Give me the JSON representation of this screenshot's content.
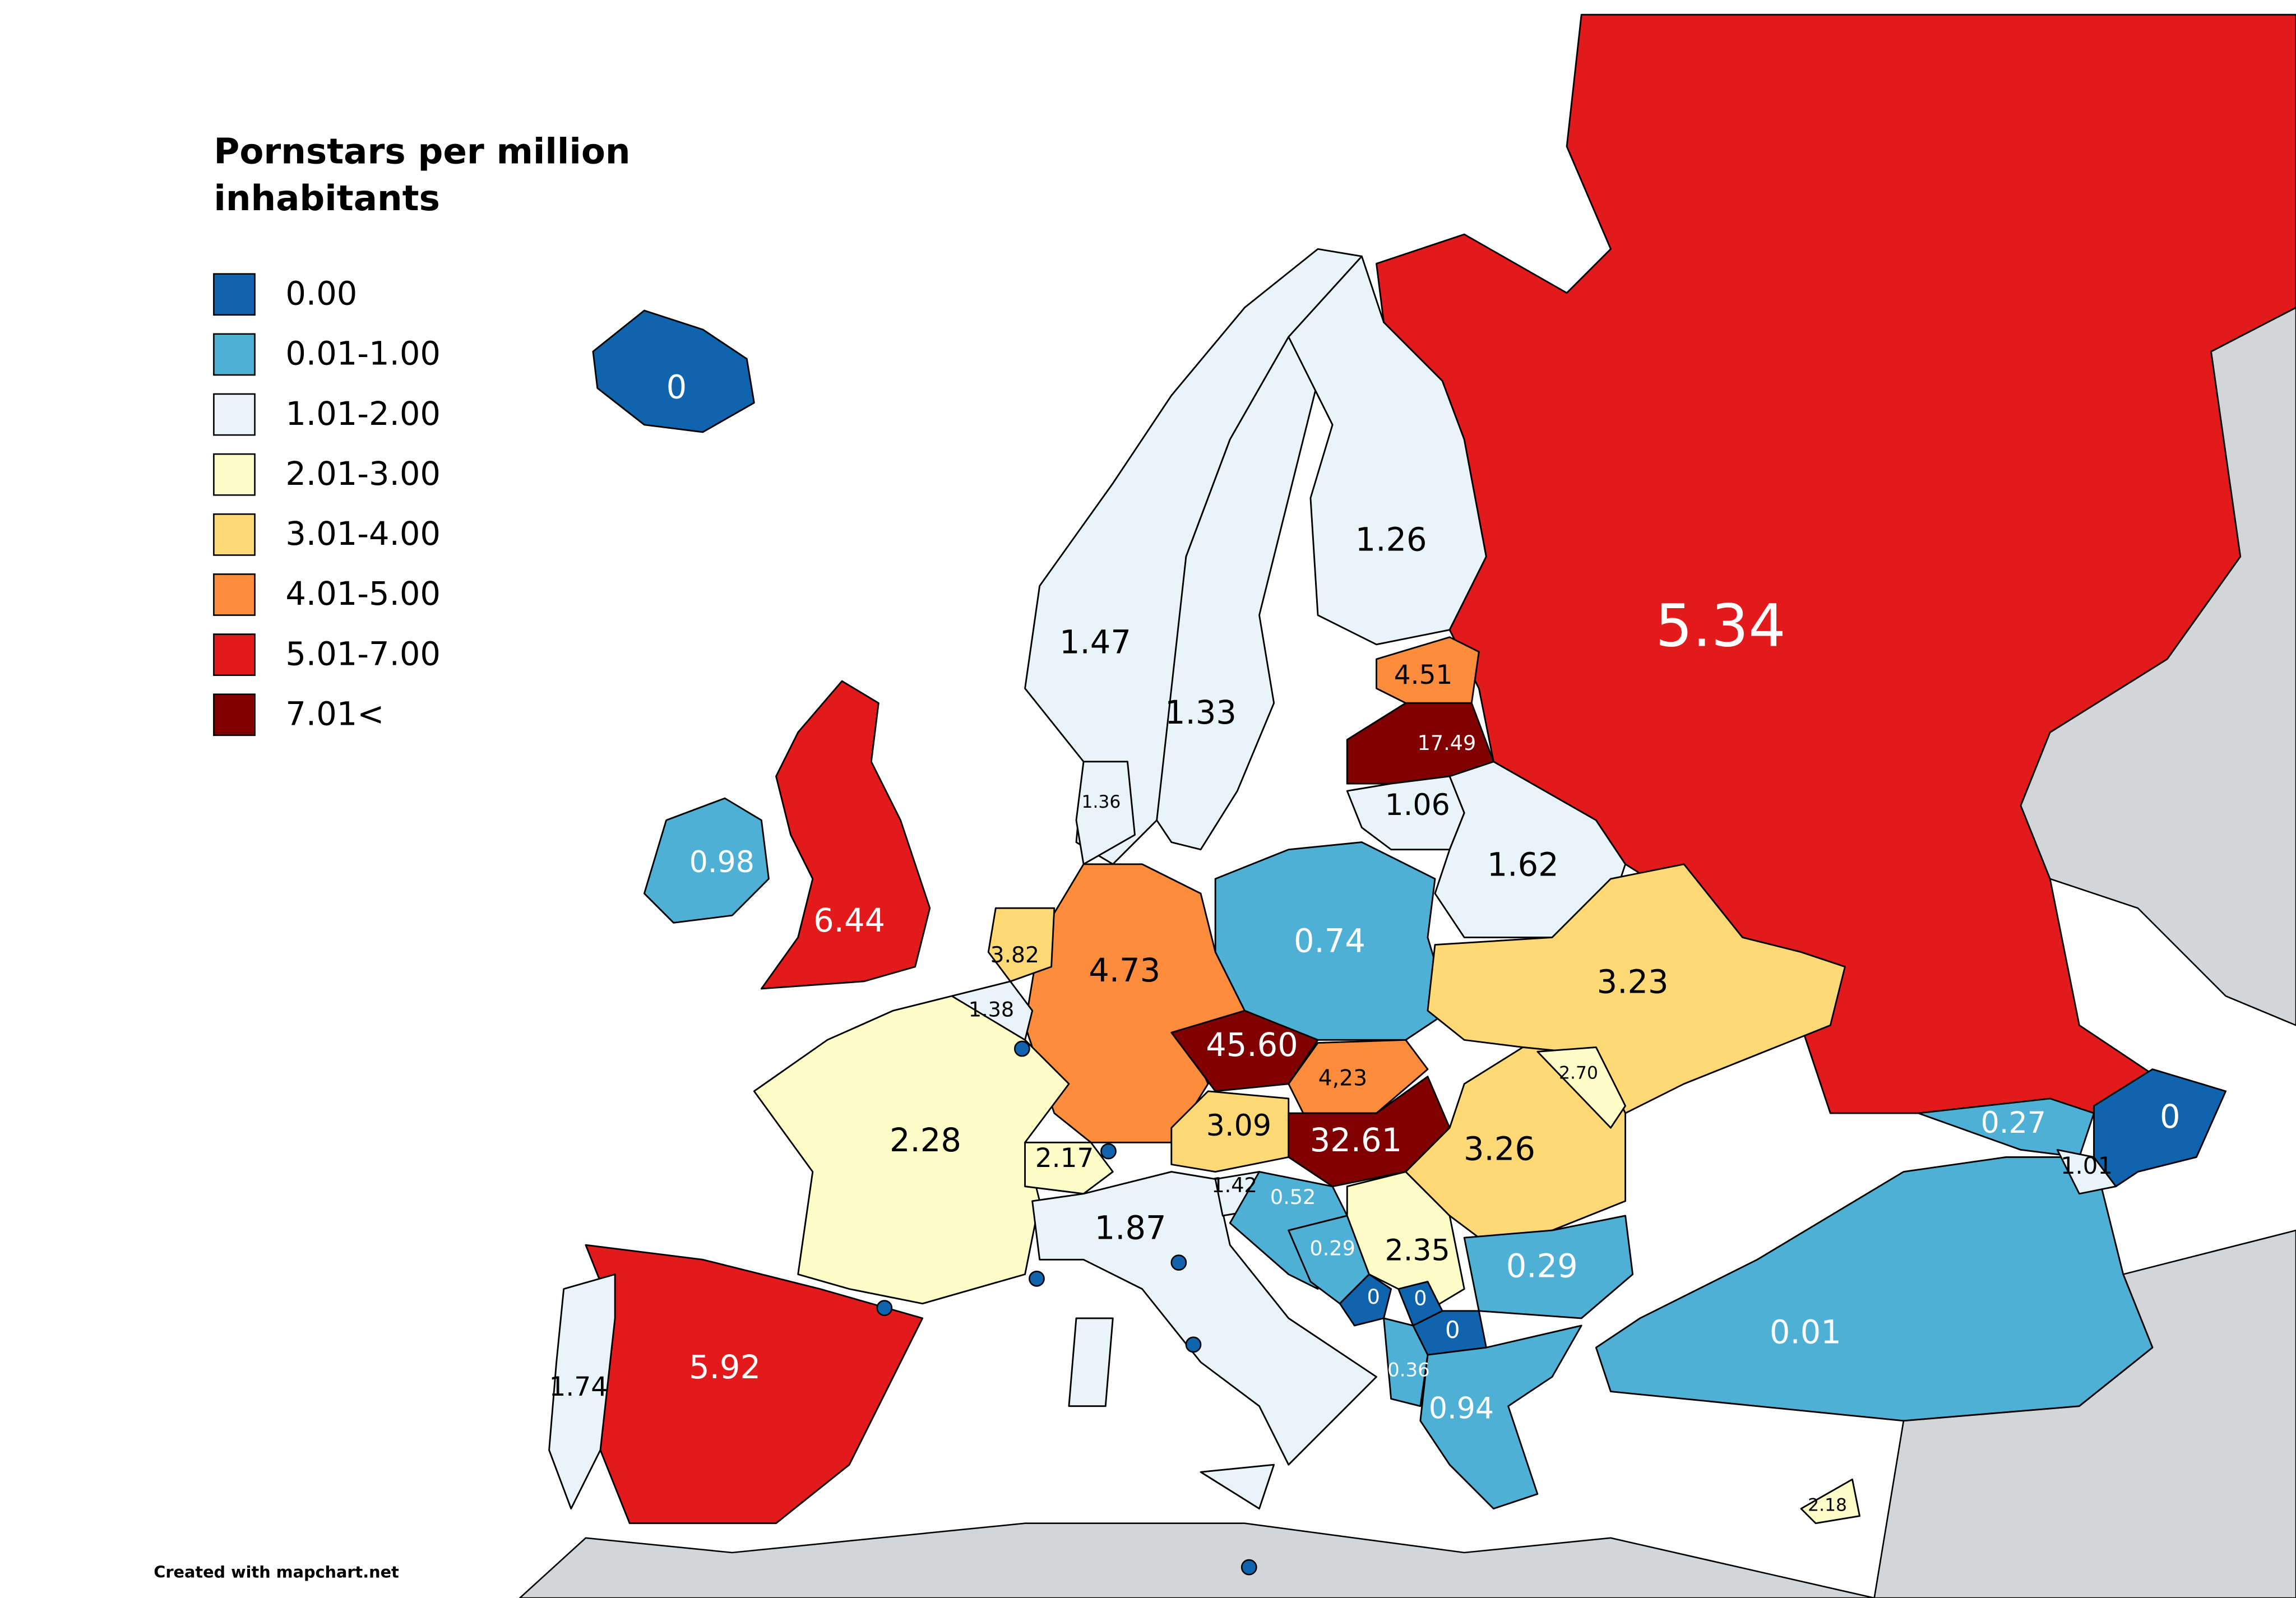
{
  "legend": {
    "title_lines": [
      "Pornstars per million",
      "inhabitants"
    ],
    "items": [
      {
        "label": "0.00",
        "color": "#0f64ad"
      },
      {
        "label": "0.01-1.00",
        "color": "#4fb0d6"
      },
      {
        "label": "1.01-2.00",
        "color": "#e8f4fa"
      },
      {
        "label": "2.01-3.00",
        "color": "#fefdc8"
      },
      {
        "label": "3.01-4.00",
        "color": "#fed976"
      },
      {
        "label": "4.01-5.00",
        "color": "#fd8d3c"
      },
      {
        "label": "5.01-7.00",
        "color": "#e31a1c"
      },
      {
        "label": "7.01<",
        "color": "#800000"
      }
    ]
  },
  "regions": [
    {
      "label": "0",
      "color": "#0f64ad"
    },
    {
      "label": "0.98",
      "color": "#4fb0d6"
    },
    {
      "label": "6.44",
      "color": "#e31a1c"
    },
    {
      "label": "1.47",
      "color": "#e8f4fa"
    },
    {
      "label": "1.33",
      "color": "#e8f4fa"
    },
    {
      "label": "1.26",
      "color": "#e8f4fa"
    },
    {
      "label": "5.34",
      "color": "#e31a1c"
    },
    {
      "label": "4.51",
      "color": "#fd8d3c"
    },
    {
      "label": "17.49",
      "color": "#800000"
    },
    {
      "label": "1.06",
      "color": "#e8f4fa"
    },
    {
      "label": "1.62",
      "color": "#e8f4fa"
    },
    {
      "label": "0.74",
      "color": "#4fb0d6"
    },
    {
      "label": "3.23",
      "color": "#fed976"
    },
    {
      "label": "4.73",
      "color": "#fd8d3c"
    },
    {
      "label": "3.82",
      "color": "#fed976"
    },
    {
      "label": "1.38",
      "color": "#e8f4fa"
    },
    {
      "label": "2.28",
      "color": "#fefdc8"
    },
    {
      "label": "5.92",
      "color": "#e31a1c"
    },
    {
      "label": "1.74",
      "color": "#e8f4fa"
    },
    {
      "label": "2.17",
      "color": "#fefdc8"
    },
    {
      "label": "3.09",
      "color": "#fed976"
    },
    {
      "label": "45.60",
      "color": "#800000"
    },
    {
      "label": "4,23",
      "color": "#fd8d3c"
    },
    {
      "label": "32.61",
      "color": "#800000"
    },
    {
      "label": "1.87",
      "color": "#e8f4fa"
    },
    {
      "label": "1.42",
      "color": "#e8f4fa"
    },
    {
      "label": "0.52",
      "color": "#4fb0d6"
    },
    {
      "label": "0.29",
      "color": "#4fb0d6"
    },
    {
      "label": "2.35",
      "color": "#fefdc8"
    },
    {
      "label": "0",
      "color": "#0f64ad"
    },
    {
      "label": "0",
      "color": "#0f64ad"
    },
    {
      "label": "0",
      "color": "#0f64ad"
    },
    {
      "label": "0.36",
      "color": "#4fb0d6"
    },
    {
      "label": "3.26",
      "color": "#fed976"
    },
    {
      "label": "2.70",
      "color": "#fefdc8"
    },
    {
      "label": "0.29",
      "color": "#4fb0d6"
    },
    {
      "label": "0.94",
      "color": "#4fb0d6"
    },
    {
      "label": "0.01",
      "color": "#4fb0d6"
    },
    {
      "label": "0.27",
      "color": "#4fb0d6"
    },
    {
      "label": "1.01",
      "color": "#e8f4fa"
    },
    {
      "label": "0",
      "color": "#0f64ad"
    },
    {
      "label": "2.18",
      "color": "#fefdc8"
    },
    {
      "label": "1.36",
      "color": "#e8f4fa"
    }
  ],
  "footer": "Created with mapchart.net"
}
